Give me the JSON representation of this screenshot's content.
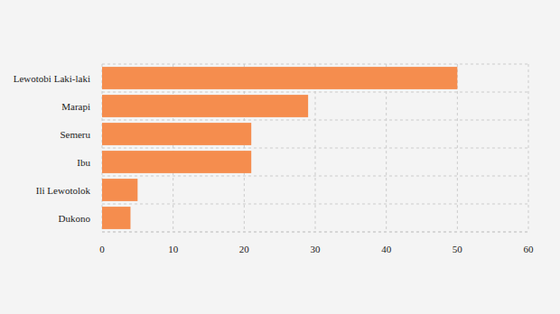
{
  "chart_data": {
    "type": "bar",
    "orientation": "horizontal",
    "categories": [
      "Lewotobi Laki-laki",
      "Marapi",
      "Semeru",
      "Ibu",
      "Ili Lewotolok",
      "Dukono"
    ],
    "values": [
      50,
      29,
      21,
      21,
      5,
      4
    ],
    "color": "#f58d4e",
    "xlim": [
      0,
      60
    ],
    "xticks": [
      0,
      10,
      20,
      30,
      40,
      50,
      60
    ],
    "grid": true
  }
}
